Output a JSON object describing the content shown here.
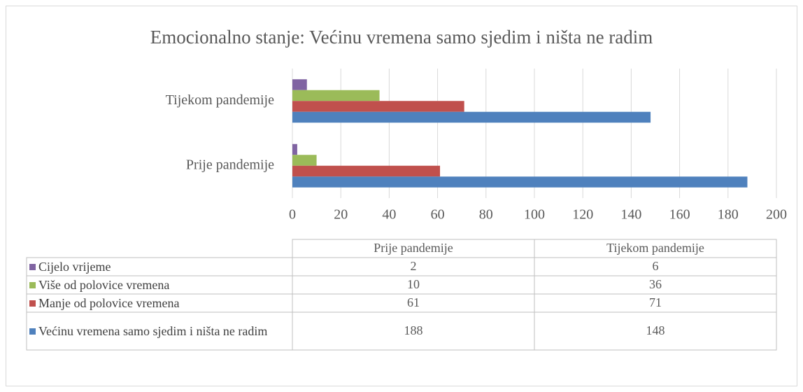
{
  "chart_data": {
    "type": "bar",
    "orientation": "horizontal",
    "title": "Emocionalno stanje: Većinu vremena samo sjedim i ništa ne radim",
    "categories": [
      "Prije pandemije",
      "Tijekom pandemije"
    ],
    "series": [
      {
        "name": "Cijelo vrijeme",
        "color": "#8064a2",
        "values": [
          2,
          6
        ]
      },
      {
        "name": "Više od polovice vremena",
        "color": "#9bbb59",
        "values": [
          10,
          36
        ]
      },
      {
        "name": "Manje od polovice vremena",
        "color": "#c0504d",
        "values": [
          61,
          71
        ]
      },
      {
        "name": "Većinu vremena samo sjedim i ništa ne radim",
        "color": "#4f81bd",
        "values": [
          188,
          148
        ]
      }
    ],
    "xlim": [
      0,
      200
    ],
    "xticks": [
      0,
      20,
      40,
      60,
      80,
      100,
      120,
      140,
      160,
      180,
      200
    ],
    "grid": true,
    "data_table": true
  }
}
